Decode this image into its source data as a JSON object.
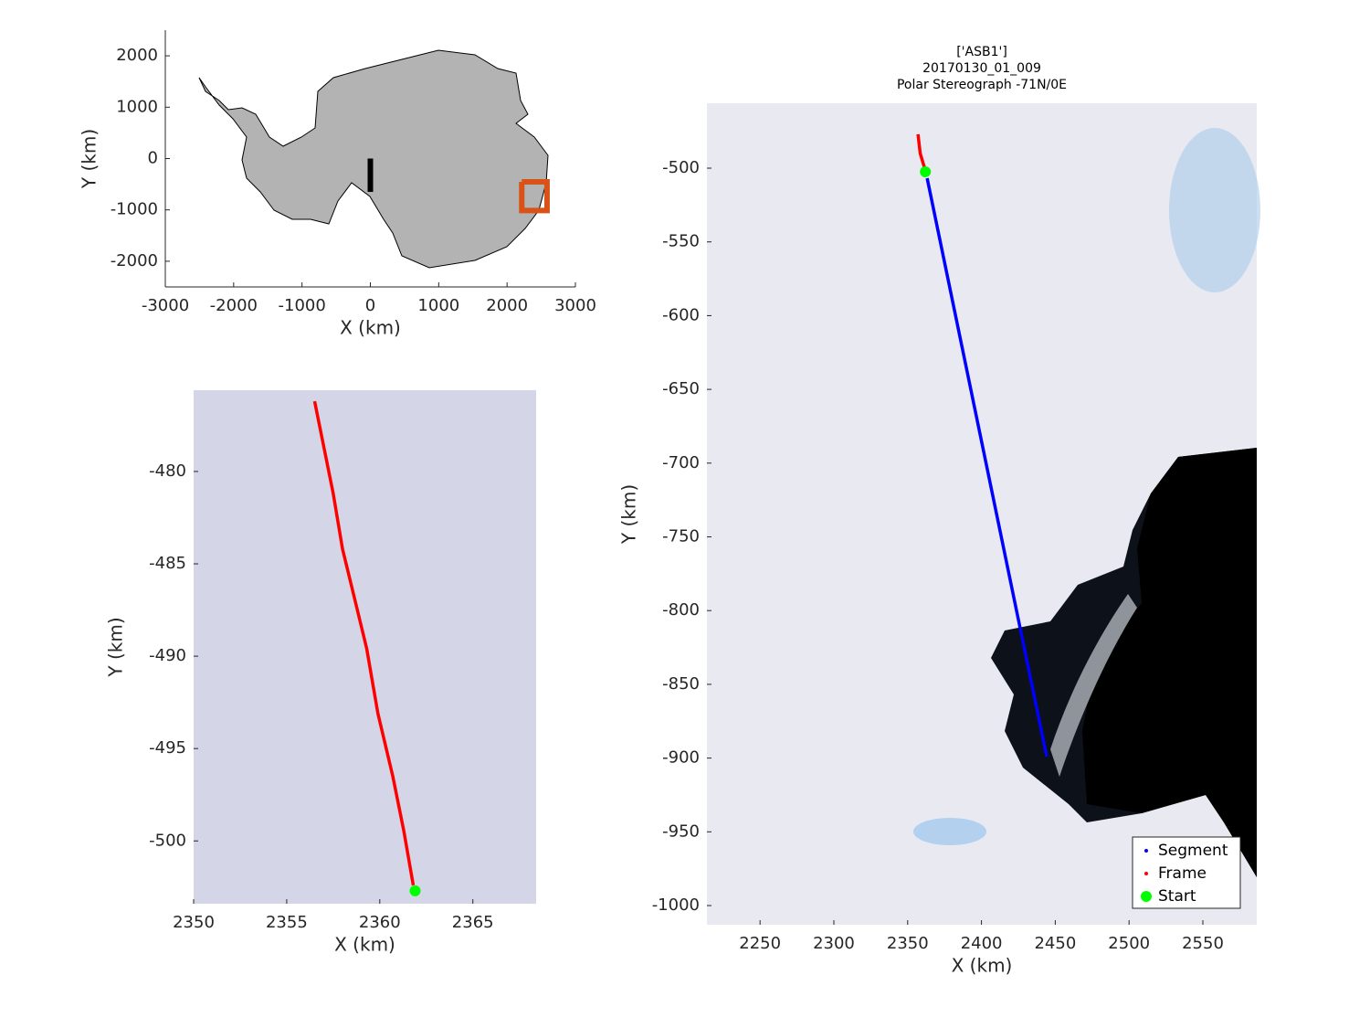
{
  "chart_data": [
    {
      "type": "line",
      "xlabel": "X (km)",
      "ylabel": "Y (km)",
      "xlim": [
        -3000,
        3000
      ],
      "ylim": [
        -2500,
        2500
      ],
      "xticks": [
        -3000,
        -2000,
        -1000,
        0,
        1000,
        2000,
        3000
      ],
      "yticks": [
        -2000,
        -1000,
        0,
        1000,
        2000
      ],
      "series": [
        {
          "color": "#d95319",
          "x": [
            2215,
            2585,
            2585,
            2215,
            2215
          ],
          "values": [
            -453,
            -453,
            -1013,
            -1013,
            -453
          ]
        },
        {
          "color": "#000000",
          "x": [
            0,
            0
          ],
          "values": [
            0,
            -650
          ]
        }
      ]
    },
    {
      "type": "line",
      "xlabel": "X (km)",
      "ylabel": "Y (km)",
      "xlim": [
        2350,
        2368.4
      ],
      "ylim": [
        -503.4,
        -475.6
      ],
      "xticks": [
        2350,
        2355,
        2360,
        2365
      ],
      "yticks": [
        -500,
        -495,
        -490,
        -485,
        -480
      ],
      "series": [
        {
          "color": "#ff0000",
          "x": [
            2356.5,
            2357.0,
            2357.5,
            2358.0,
            2358.7,
            2359.3,
            2359.9,
            2360.7,
            2361.3,
            2361.8
          ],
          "values": [
            -476.2,
            -478.7,
            -481.2,
            -484.2,
            -487.1,
            -489.6,
            -493.1,
            -496.5,
            -499.5,
            -502.4
          ]
        },
        {
          "color": "#00ff00",
          "marker": "o",
          "x": [
            2361.9
          ],
          "values": [
            -502.7
          ]
        }
      ]
    },
    {
      "type": "line",
      "title": [
        "['ASB1']",
        "20170130_01_009",
        "Polar Stereograph -71N/0E"
      ],
      "xlabel": "X (km)",
      "ylabel": "Y (km)",
      "xlim": [
        2214,
        2586.5
      ],
      "ylim": [
        -1013,
        -456
      ],
      "xticks": [
        2250,
        2300,
        2350,
        2400,
        2450,
        2500,
        2550
      ],
      "yticks": [
        -1000,
        -950,
        -900,
        -850,
        -800,
        -750,
        -700,
        -650,
        -600,
        -550,
        -500
      ],
      "legend": "southeast",
      "series": [
        {
          "name": "Segment",
          "color": "#0000ff",
          "x": [
            2363.2,
            2444.2
          ],
          "values": [
            -506.8,
            -899
          ]
        },
        {
          "name": "Frame",
          "color": "#ff0000",
          "x": [
            2357,
            2358.5,
            2362.6
          ],
          "values": [
            -477,
            -490,
            -503.7
          ]
        },
        {
          "name": "Start",
          "color": "#00ff00",
          "marker": "o",
          "x": [
            2362
          ],
          "values": [
            -502.5
          ]
        }
      ]
    }
  ]
}
